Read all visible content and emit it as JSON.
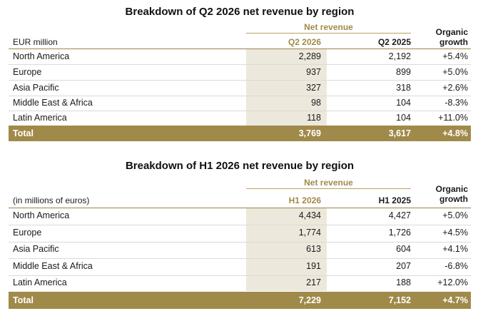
{
  "colors": {
    "gold": "#a08a4a",
    "shade": "#ece8dc"
  },
  "tables": [
    {
      "title": "Breakdown of Q2 2026 net revenue by region",
      "group_label": "Net revenue",
      "unit_label": "EUR million",
      "col_current": "Q2 2026",
      "col_prior": "Q2 2025",
      "col_growth_line1": "Organic",
      "col_growth_line2": "growth",
      "rows": [
        {
          "region": "North America",
          "current": "2,289",
          "prior": "2,192",
          "growth": "+5.4%"
        },
        {
          "region": "Europe",
          "current": "937",
          "prior": "899",
          "growth": "+5.0%"
        },
        {
          "region": "Asia Pacific",
          "current": "327",
          "prior": "318",
          "growth": "+2.6%"
        },
        {
          "region": "Middle East & Africa",
          "current": "98",
          "prior": "104",
          "growth": "-8.3%"
        },
        {
          "region": "Latin America",
          "current": "118",
          "prior": "104",
          "growth": "+11.0%"
        }
      ],
      "total": {
        "region": "Total",
        "current": "3,769",
        "prior": "3,617",
        "growth": "+4.8%"
      }
    },
    {
      "title": "Breakdown of H1 2026 net revenue by region",
      "group_label": "Net revenue",
      "unit_label": "(in millions of euros)",
      "col_current": "H1 2026",
      "col_prior": "H1 2025",
      "col_growth_line1": "Organic",
      "col_growth_line2": "growth",
      "rows": [
        {
          "region": "North America",
          "current": "4,434",
          "prior": "4,427",
          "growth": "+5.0%"
        },
        {
          "region": "Europe",
          "current": "1,774",
          "prior": "1,726",
          "growth": "+4.5%"
        },
        {
          "region": "Asia Pacific",
          "current": "613",
          "prior": "604",
          "growth": "+4.1%"
        },
        {
          "region": "Middle East & Africa",
          "current": "191",
          "prior": "207",
          "growth": "-6.8%"
        },
        {
          "region": "Latin America",
          "current": "217",
          "prior": "188",
          "growth": "+12.0%"
        }
      ],
      "total": {
        "region": "Total",
        "current": "7,229",
        "prior": "7,152",
        "growth": "+4.7%"
      }
    }
  ]
}
